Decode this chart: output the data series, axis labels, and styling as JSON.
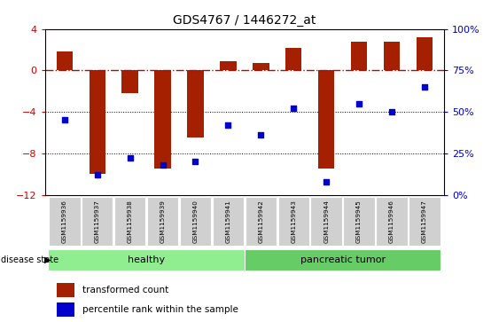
{
  "title": "GDS4767 / 1446272_at",
  "samples": [
    "GSM1159936",
    "GSM1159937",
    "GSM1159938",
    "GSM1159939",
    "GSM1159940",
    "GSM1159941",
    "GSM1159942",
    "GSM1159943",
    "GSM1159944",
    "GSM1159945",
    "GSM1159946",
    "GSM1159947"
  ],
  "transformed_count": [
    1.8,
    -10.0,
    -2.2,
    -9.5,
    -6.5,
    0.9,
    0.7,
    2.2,
    -9.5,
    2.8,
    2.8,
    3.2
  ],
  "percentile_rank": [
    45,
    12,
    22,
    18,
    20,
    42,
    36,
    52,
    8,
    55,
    50,
    65
  ],
  "group_labels": [
    "healthy",
    "pancreatic tumor"
  ],
  "group_ranges": [
    [
      0,
      5
    ],
    [
      6,
      11
    ]
  ],
  "bar_color": "#A52000",
  "dot_color": "#0000CC",
  "dashed_line_color": "#CC0000",
  "left_ylim": [
    -12,
    4
  ],
  "left_yticks": [
    -12,
    -8,
    -4,
    0,
    4
  ],
  "right_ylim": [
    0,
    100
  ],
  "right_yticks": [
    0,
    25,
    50,
    75,
    100
  ],
  "right_yticklabels": [
    "0%",
    "25%",
    "50%",
    "75%",
    "100%"
  ],
  "bg_color": "#FFFFFF",
  "grid_color": "#000000",
  "sample_bg": "#D0D0D0",
  "healthy_color": "#90EE90",
  "tumor_color": "#66CC66",
  "legend_items": [
    "transformed count",
    "percentile rank within the sample"
  ],
  "bar_width": 0.5
}
